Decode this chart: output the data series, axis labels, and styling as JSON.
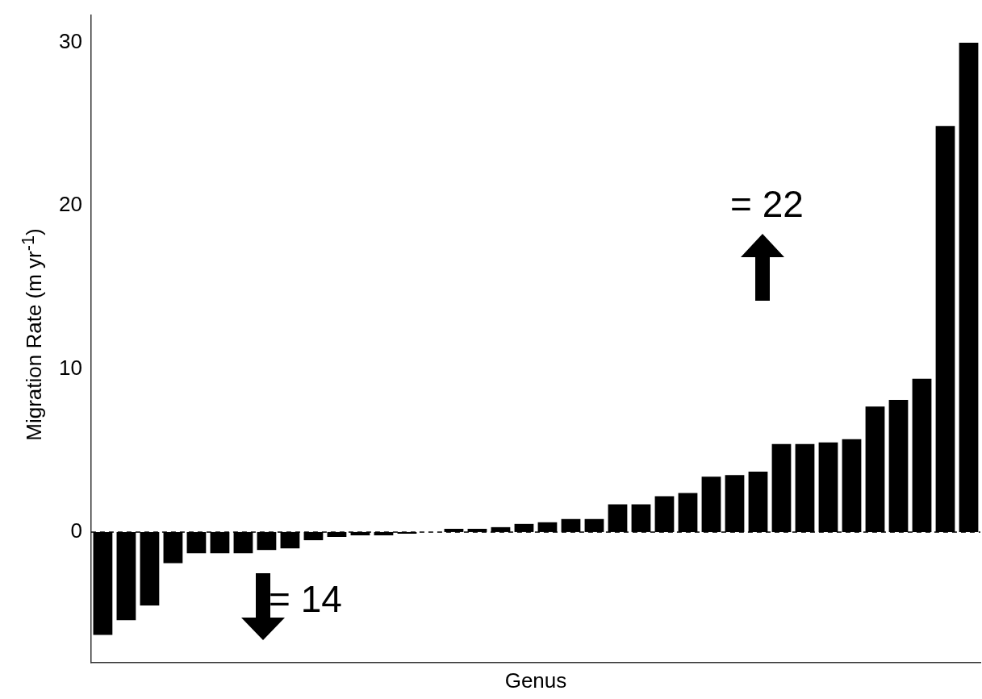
{
  "chart_data": {
    "type": "bar",
    "xlabel": "Genus",
    "ylabel": "Migration Rate (m yr$^{-1}$)",
    "categories": [
      null,
      null,
      null,
      null,
      null,
      null,
      null,
      null,
      null,
      null,
      null,
      null,
      null,
      null,
      null,
      null,
      null,
      null,
      null,
      null,
      null,
      null,
      null,
      null,
      null,
      null,
      null,
      null,
      null,
      null,
      null,
      null,
      null,
      null,
      null,
      null,
      null,
      null
    ],
    "values": [
      -6.3,
      -5.4,
      -4.5,
      -1.9,
      -1.3,
      -1.3,
      -1.3,
      -1.1,
      -1.0,
      -0.5,
      -0.3,
      -0.2,
      -0.2,
      -0.1,
      0,
      0.2,
      0.2,
      0.3,
      0.5,
      0.6,
      0.8,
      0.8,
      1.7,
      1.7,
      2.2,
      2.4,
      3.4,
      3.5,
      3.7,
      5.4,
      5.4,
      5.5,
      5.7,
      7.7,
      8.1,
      9.4,
      24.9,
      30
    ],
    "color": "#000000",
    "ylim": [
      -8,
      31.7
    ],
    "yticks": [
      0,
      10,
      20,
      30
    ],
    "grid": false,
    "legend": false,
    "tick_labels": "y",
    "ref_lines": [
      {
        "axis": "y",
        "value": 0,
        "line_style": "dashed",
        "color": "#000000"
      }
    ],
    "annotations": [
      "= 22",
      "= 14"
    ]
  }
}
